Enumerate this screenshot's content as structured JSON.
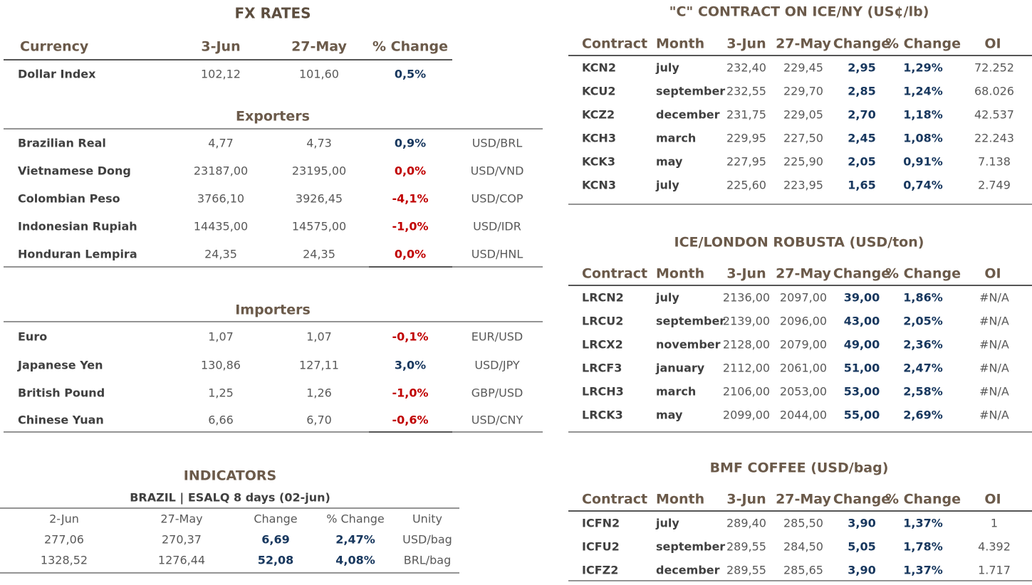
{
  "fx_rates": {
    "title": "FX RATES",
    "header": [
      "Currency",
      "3-Jun",
      "27-May",
      "% Change"
    ],
    "rows": [
      [
        "Dollar Index",
        "102,12",
        "101,60",
        "0,5%"
      ]
    ],
    "change_colors": [
      "#17375e"
    ],
    "sections": [
      {
        "title": "Exporters",
        "rows": [
          [
            "Brazilian Real",
            "4,77",
            "4,73",
            "0,9%",
            "USD/BRL"
          ],
          [
            "Vietnamese Dong",
            "23187,00",
            "23195,00",
            "0,0%",
            "USD/VND"
          ],
          [
            "Colombian Peso",
            "3766,10",
            "3926,45",
            "-4,1%",
            "USD/COP"
          ],
          [
            "Indonesian Rupiah",
            "14435,00",
            "14575,00",
            "-1,0%",
            "USD/IDR"
          ],
          [
            "Honduran Lempira",
            "24,35",
            "24,35",
            "0,0%",
            "USD/HNL"
          ]
        ],
        "change_colors": [
          "#17375e",
          "#c00000",
          "#c00000",
          "#c00000",
          "#c00000"
        ]
      },
      {
        "title": "Importers",
        "rows": [
          [
            "Euro",
            "1,07",
            "1,07",
            "-0,1%",
            "EUR/USD"
          ],
          [
            "Japanese Yen",
            "130,86",
            "127,11",
            "3,0%",
            "USD/JPY"
          ],
          [
            "British Pound",
            "1,25",
            "1,26",
            "-1,0%",
            "GBP/USD"
          ],
          [
            "Chinese Yuan",
            "6,66",
            "6,70",
            "-0,6%",
            "USD/CNY"
          ]
        ],
        "change_colors": [
          "#c00000",
          "#17375e",
          "#c00000",
          "#c00000"
        ]
      }
    ]
  },
  "indicators": {
    "title": "INDICATORS",
    "subtitle": "BRAZIL | ESALQ 8 days (02-jun)",
    "header": [
      "2-Jun",
      "27-May",
      "Change",
      "% Change",
      "Unity"
    ],
    "rows": [
      [
        "277,06",
        "270,37",
        "6,69",
        "2,47%",
        "USD/bag"
      ],
      [
        "1328,52",
        "1276,44",
        "52,08",
        "4,08%",
        "BRL/bag"
      ]
    ]
  },
  "c_contract": {
    "title": "\"C\" CONTRACT ON ICE/NY (US¢/lb)",
    "header": [
      "Contract",
      "Month",
      "3-Jun",
      "27-May",
      "Change",
      "% Change",
      "OI"
    ],
    "rows": [
      [
        "KCN2",
        "july",
        "232,40",
        "229,45",
        "2,95",
        "1,29%",
        "72.252"
      ],
      [
        "KCU2",
        "september",
        "232,55",
        "229,70",
        "2,85",
        "1,24%",
        "68.026"
      ],
      [
        "KCZ2",
        "december",
        "231,75",
        "229,05",
        "2,70",
        "1,18%",
        "42.537"
      ],
      [
        "KCH3",
        "march",
        "229,95",
        "227,50",
        "2,45",
        "1,08%",
        "22.243"
      ],
      [
        "KCK3",
        "may",
        "227,95",
        "225,90",
        "2,05",
        "0,91%",
        "7.138"
      ],
      [
        "KCN3",
        "july",
        "225,60",
        "223,95",
        "1,65",
        "0,74%",
        "2.749"
      ]
    ]
  },
  "robusta": {
    "title": "ICE/LONDON ROBUSTA (USD/ton)",
    "header": [
      "Contract",
      "Month",
      "3-Jun",
      "27-May",
      "Change",
      "% Change",
      "OI"
    ],
    "rows": [
      [
        "LRCN2",
        "july",
        "2136,00",
        "2097,00",
        "39,00",
        "1,86%",
        "#N/A"
      ],
      [
        "LRCU2",
        "september",
        "2139,00",
        "2096,00",
        "43,00",
        "2,05%",
        "#N/A"
      ],
      [
        "LRCX2",
        "november",
        "2128,00",
        "2079,00",
        "49,00",
        "2,36%",
        "#N/A"
      ],
      [
        "LRCF3",
        "january",
        "2112,00",
        "2061,00",
        "51,00",
        "2,47%",
        "#N/A"
      ],
      [
        "LRCH3",
        "march",
        "2106,00",
        "2053,00",
        "53,00",
        "2,58%",
        "#N/A"
      ],
      [
        "LRCK3",
        "may",
        "2099,00",
        "2044,00",
        "55,00",
        "2,69%",
        "#N/A"
      ]
    ]
  },
  "bmf_coffee": {
    "title": "BMF COFFEE (USD/bag)",
    "header": [
      "Contract",
      "Month",
      "3-Jun",
      "27-May",
      "Change",
      "% Change",
      "OI"
    ],
    "rows": [
      [
        "ICFN2",
        "july",
        "289,40",
        "285,50",
        "3,90",
        "1,37%",
        "1"
      ],
      [
        "ICFU2",
        "september",
        "289,55",
        "284,50",
        "5,05",
        "1,78%",
        "4.392"
      ],
      [
        "ICFZ2",
        "december",
        "289,55",
        "285,65",
        "3,90",
        "1,37%",
        "1.717"
      ]
    ]
  }
}
